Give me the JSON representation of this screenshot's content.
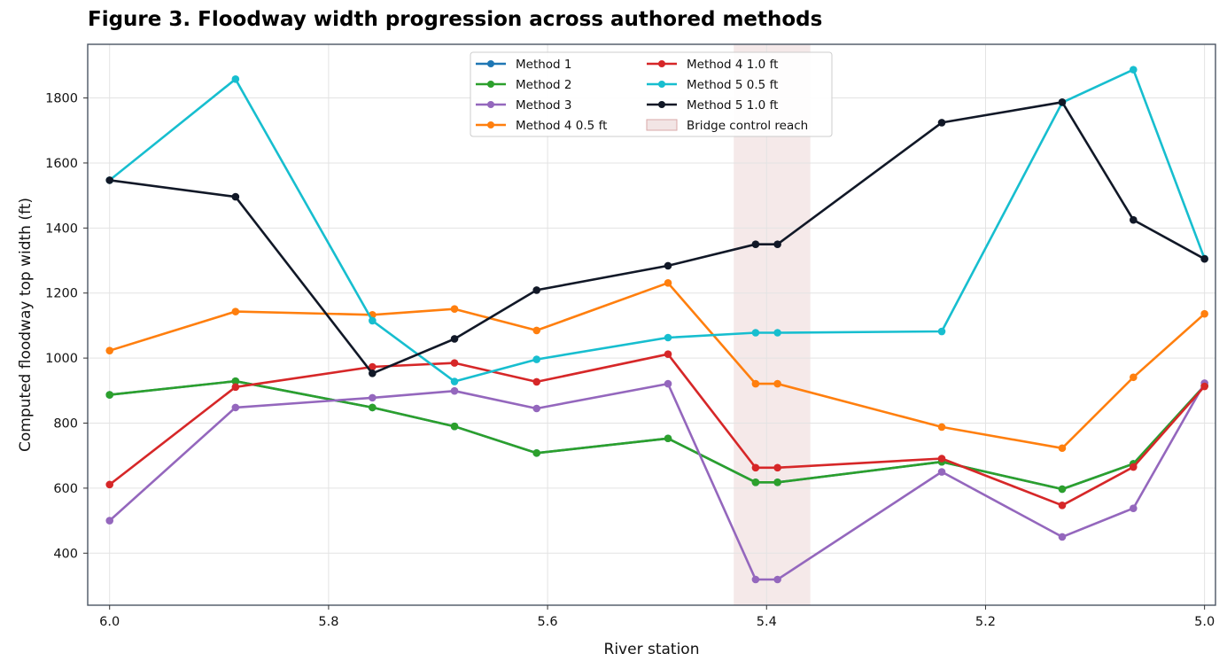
{
  "title": "Figure 3. Floodway width progression across authored methods",
  "chart_data": {
    "type": "line",
    "title": "Figure 3. Floodway width progression across authored methods",
    "xlabel": "River station",
    "ylabel": "Computed floodway top width (ft)",
    "x_axis_reversed": true,
    "xlim": [
      6.02,
      4.99
    ],
    "ylim": [
      240,
      1965
    ],
    "xticks": [
      "6.0",
      "5.8",
      "5.6",
      "5.4",
      "5.2",
      "5.0"
    ],
    "xtick_values": [
      6.0,
      5.8,
      5.6,
      5.4,
      5.2,
      5.0
    ],
    "yticks": [
      "400",
      "600",
      "800",
      "1000",
      "1200",
      "1400",
      "1600",
      "1800"
    ],
    "ytick_values": [
      400,
      600,
      800,
      1000,
      1200,
      1400,
      1600,
      1800
    ],
    "grid": true,
    "legend_position": "top-center",
    "x": [
      6.0,
      5.885,
      5.76,
      5.685,
      5.61,
      5.49,
      5.41,
      5.39,
      5.24,
      5.13,
      5.065,
      5.0
    ],
    "series": [
      {
        "name": "Method 1",
        "color": "#1f77b4",
        "values": [
          887,
          929,
          848,
          790,
          708,
          753,
          618,
          618,
          681,
          597,
          675,
          915
        ]
      },
      {
        "name": "Method 2",
        "color": "#2ca02c",
        "values": [
          887,
          929,
          848,
          790,
          708,
          753,
          618,
          618,
          681,
          597,
          675,
          915
        ]
      },
      {
        "name": "Method 3",
        "color": "#9467bd",
        "values": [
          500,
          848,
          878,
          899,
          845,
          921,
          319,
          319,
          650,
          450,
          538,
          923
        ]
      },
      {
        "name": "Method 4 0.5 ft",
        "color": "#ff7f0e",
        "values": [
          1023,
          1143,
          1133,
          1151,
          1085,
          1231,
          921,
          921,
          788,
          723,
          941,
          1136
        ]
      },
      {
        "name": "Method 4 1.0 ft",
        "color": "#d62728",
        "values": [
          611,
          911,
          973,
          985,
          927,
          1012,
          663,
          663,
          691,
          547,
          665,
          913
        ]
      },
      {
        "name": "Method 5 0.5 ft",
        "color": "#17becf",
        "values": [
          1547,
          1858,
          1115,
          928,
          996,
          1063,
          1078,
          1078,
          1082,
          1786,
          1887,
          1306
        ]
      },
      {
        "name": "Method 5 1.0 ft",
        "color": "#111827",
        "values": [
          1547,
          1496,
          953,
          1059,
          1209,
          1284,
          1350,
          1350,
          1724,
          1787,
          1425,
          1305
        ]
      }
    ],
    "shaded_region": {
      "name": "Bridge control reach",
      "x_from": 5.43,
      "x_to": 5.36,
      "color": "#e8cfcf"
    }
  }
}
